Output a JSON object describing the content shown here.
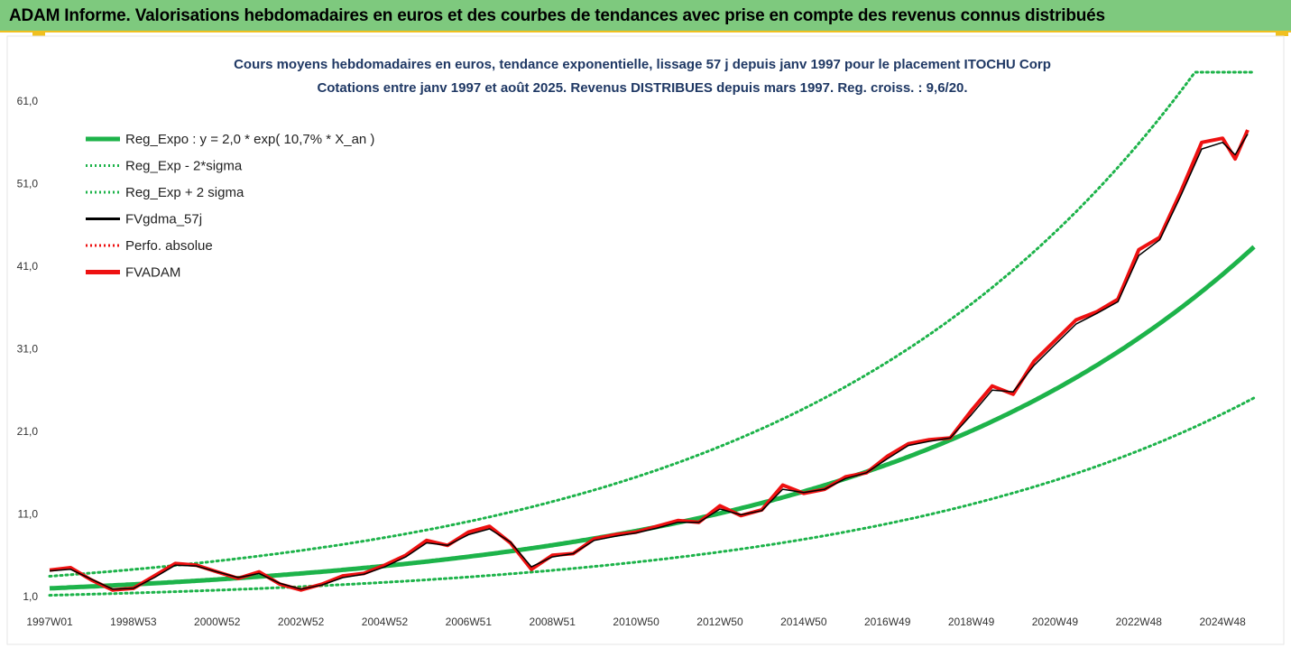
{
  "header": {
    "title": "ADAM Informe. Valorisations hebdomadaires en euros et des courbes de tendances avec prise en compte des revenus connus distribués"
  },
  "colors": {
    "header_bg": "#7ec97e",
    "trend": "#1db34a",
    "smooth": "#000000",
    "price": "#ee1111"
  },
  "chart_data": {
    "type": "line",
    "title": "Cours moyens hebdomadaires en euros, tendance exponentielle, lissage 57 j depuis janv 1997 pour le placement ITOCHU Corp",
    "subtitle": "Cotations entre janv 1997 et août 2025.  Revenus DISTRIBUES depuis mars 1997. Reg. croiss. : 9,6/20.",
    "xlabel": "",
    "ylabel": "",
    "ylim": [
      1.0,
      64.5
    ],
    "xlim": [
      1997.0,
      2025.75
    ],
    "y_ticks": [
      "1,0",
      "11,0",
      "21,0",
      "31,0",
      "41,0",
      "51,0",
      "61,0"
    ],
    "y_tick_values": [
      1,
      11,
      21,
      31,
      41,
      51,
      61
    ],
    "x_ticks": [
      "1997W01",
      "1998W53",
      "2000W52",
      "2002W52",
      "2004W52",
      "2006W51",
      "2008W51",
      "2010W50",
      "2012W50",
      "2014W50",
      "2016W49",
      "2018W49",
      "2020W49",
      "2022W48",
      "2024W48"
    ],
    "x_tick_values": [
      1997.0,
      1999.0,
      2001.0,
      2003.0,
      2005.0,
      2007.0,
      2009.0,
      2011.0,
      2013.0,
      2015.0,
      2017.0,
      2019.0,
      2021.0,
      2023.0,
      2025.0
    ],
    "legend_position": "top-left",
    "trend_formula": {
      "a": 2.0,
      "b": 0.107,
      "sigma_factor": 1.73
    },
    "legend": [
      {
        "label": "Reg_Expo : y = 2,0 * exp( 10,7% *  X_an )",
        "color": "#1db34a",
        "style": "solid-thick"
      },
      {
        "label": "Reg_Exp - 2*sigma",
        "color": "#1db34a",
        "style": "dotted"
      },
      {
        "label": "Reg_Exp + 2 sigma",
        "color": "#1db34a",
        "style": "dotted"
      },
      {
        "label": "FVgdma_57j",
        "color": "#000000",
        "style": "solid"
      },
      {
        "label": "Perfo. absolue",
        "color": "#ee1111",
        "style": "dotted"
      },
      {
        "label": "FVADAM",
        "color": "#ee1111",
        "style": "solid-thick"
      }
    ],
    "series": [
      {
        "name": "FVADAM",
        "x": [
          1997.0,
          1997.5,
          1998.0,
          1998.5,
          1999.0,
          1999.5,
          2000.0,
          2000.5,
          2001.0,
          2001.5,
          2002.0,
          2002.5,
          2003.0,
          2003.5,
          2004.0,
          2004.5,
          2005.0,
          2005.5,
          2006.0,
          2006.5,
          2007.0,
          2007.5,
          2008.0,
          2008.5,
          2009.0,
          2009.5,
          2010.0,
          2010.5,
          2011.0,
          2011.5,
          2012.0,
          2012.5,
          2013.0,
          2013.5,
          2014.0,
          2014.5,
          2015.0,
          2015.5,
          2016.0,
          2016.5,
          2017.0,
          2017.5,
          2018.0,
          2018.5,
          2019.0,
          2019.5,
          2020.0,
          2020.5,
          2021.0,
          2021.5,
          2022.0,
          2022.5,
          2023.0,
          2023.5,
          2024.0,
          2024.5,
          2025.0,
          2025.3,
          2025.6
        ],
        "values": [
          4.2,
          4.5,
          3.0,
          1.8,
          2.0,
          3.5,
          5.0,
          4.8,
          4.0,
          3.2,
          4.0,
          2.5,
          1.8,
          2.5,
          3.5,
          3.8,
          4.8,
          6.0,
          7.8,
          7.2,
          8.8,
          9.5,
          7.5,
          4.3,
          6.0,
          6.2,
          8.0,
          8.5,
          8.8,
          9.5,
          10.2,
          10.0,
          12.0,
          10.8,
          11.5,
          14.5,
          13.5,
          14.0,
          15.5,
          16.0,
          18.0,
          19.5,
          20.0,
          20.2,
          23.5,
          26.5,
          25.5,
          29.5,
          32.0,
          34.5,
          35.5,
          37.0,
          43.0,
          44.5,
          50.0,
          56.0,
          56.5,
          54.0,
          57.5
        ]
      },
      {
        "name": "FVgdma_57j",
        "x": [
          1997.0,
          1997.5,
          1998.0,
          1998.5,
          1999.0,
          1999.5,
          2000.0,
          2000.5,
          2001.0,
          2001.5,
          2002.0,
          2002.5,
          2003.0,
          2003.5,
          2004.0,
          2004.5,
          2005.0,
          2005.5,
          2006.0,
          2006.5,
          2007.0,
          2007.5,
          2008.0,
          2008.5,
          2009.0,
          2009.5,
          2010.0,
          2010.5,
          2011.0,
          2011.5,
          2012.0,
          2012.5,
          2013.0,
          2013.5,
          2014.0,
          2014.5,
          2015.0,
          2015.5,
          2016.0,
          2016.5,
          2017.0,
          2017.5,
          2018.0,
          2018.5,
          2019.0,
          2019.5,
          2020.0,
          2020.5,
          2021.0,
          2021.5,
          2022.0,
          2022.5,
          2023.0,
          2023.5,
          2024.0,
          2024.5,
          2025.0,
          2025.3,
          2025.6
        ],
        "values": [
          4.1,
          4.3,
          3.1,
          1.9,
          2.0,
          3.3,
          4.8,
          4.7,
          4.0,
          3.3,
          3.8,
          2.6,
          1.9,
          2.4,
          3.3,
          3.7,
          4.6,
          5.8,
          7.5,
          7.2,
          8.5,
          9.2,
          7.6,
          4.6,
          5.8,
          6.2,
          7.8,
          8.3,
          8.7,
          9.3,
          10.0,
          10.0,
          11.6,
          10.9,
          11.4,
          14.0,
          13.6,
          14.0,
          15.3,
          16.0,
          17.7,
          19.3,
          19.8,
          20.2,
          23.0,
          26.0,
          25.8,
          29.0,
          31.5,
          34.0,
          35.3,
          36.7,
          42.3,
          44.2,
          49.5,
          55.2,
          56.0,
          54.5,
          57.0
        ]
      }
    ]
  }
}
